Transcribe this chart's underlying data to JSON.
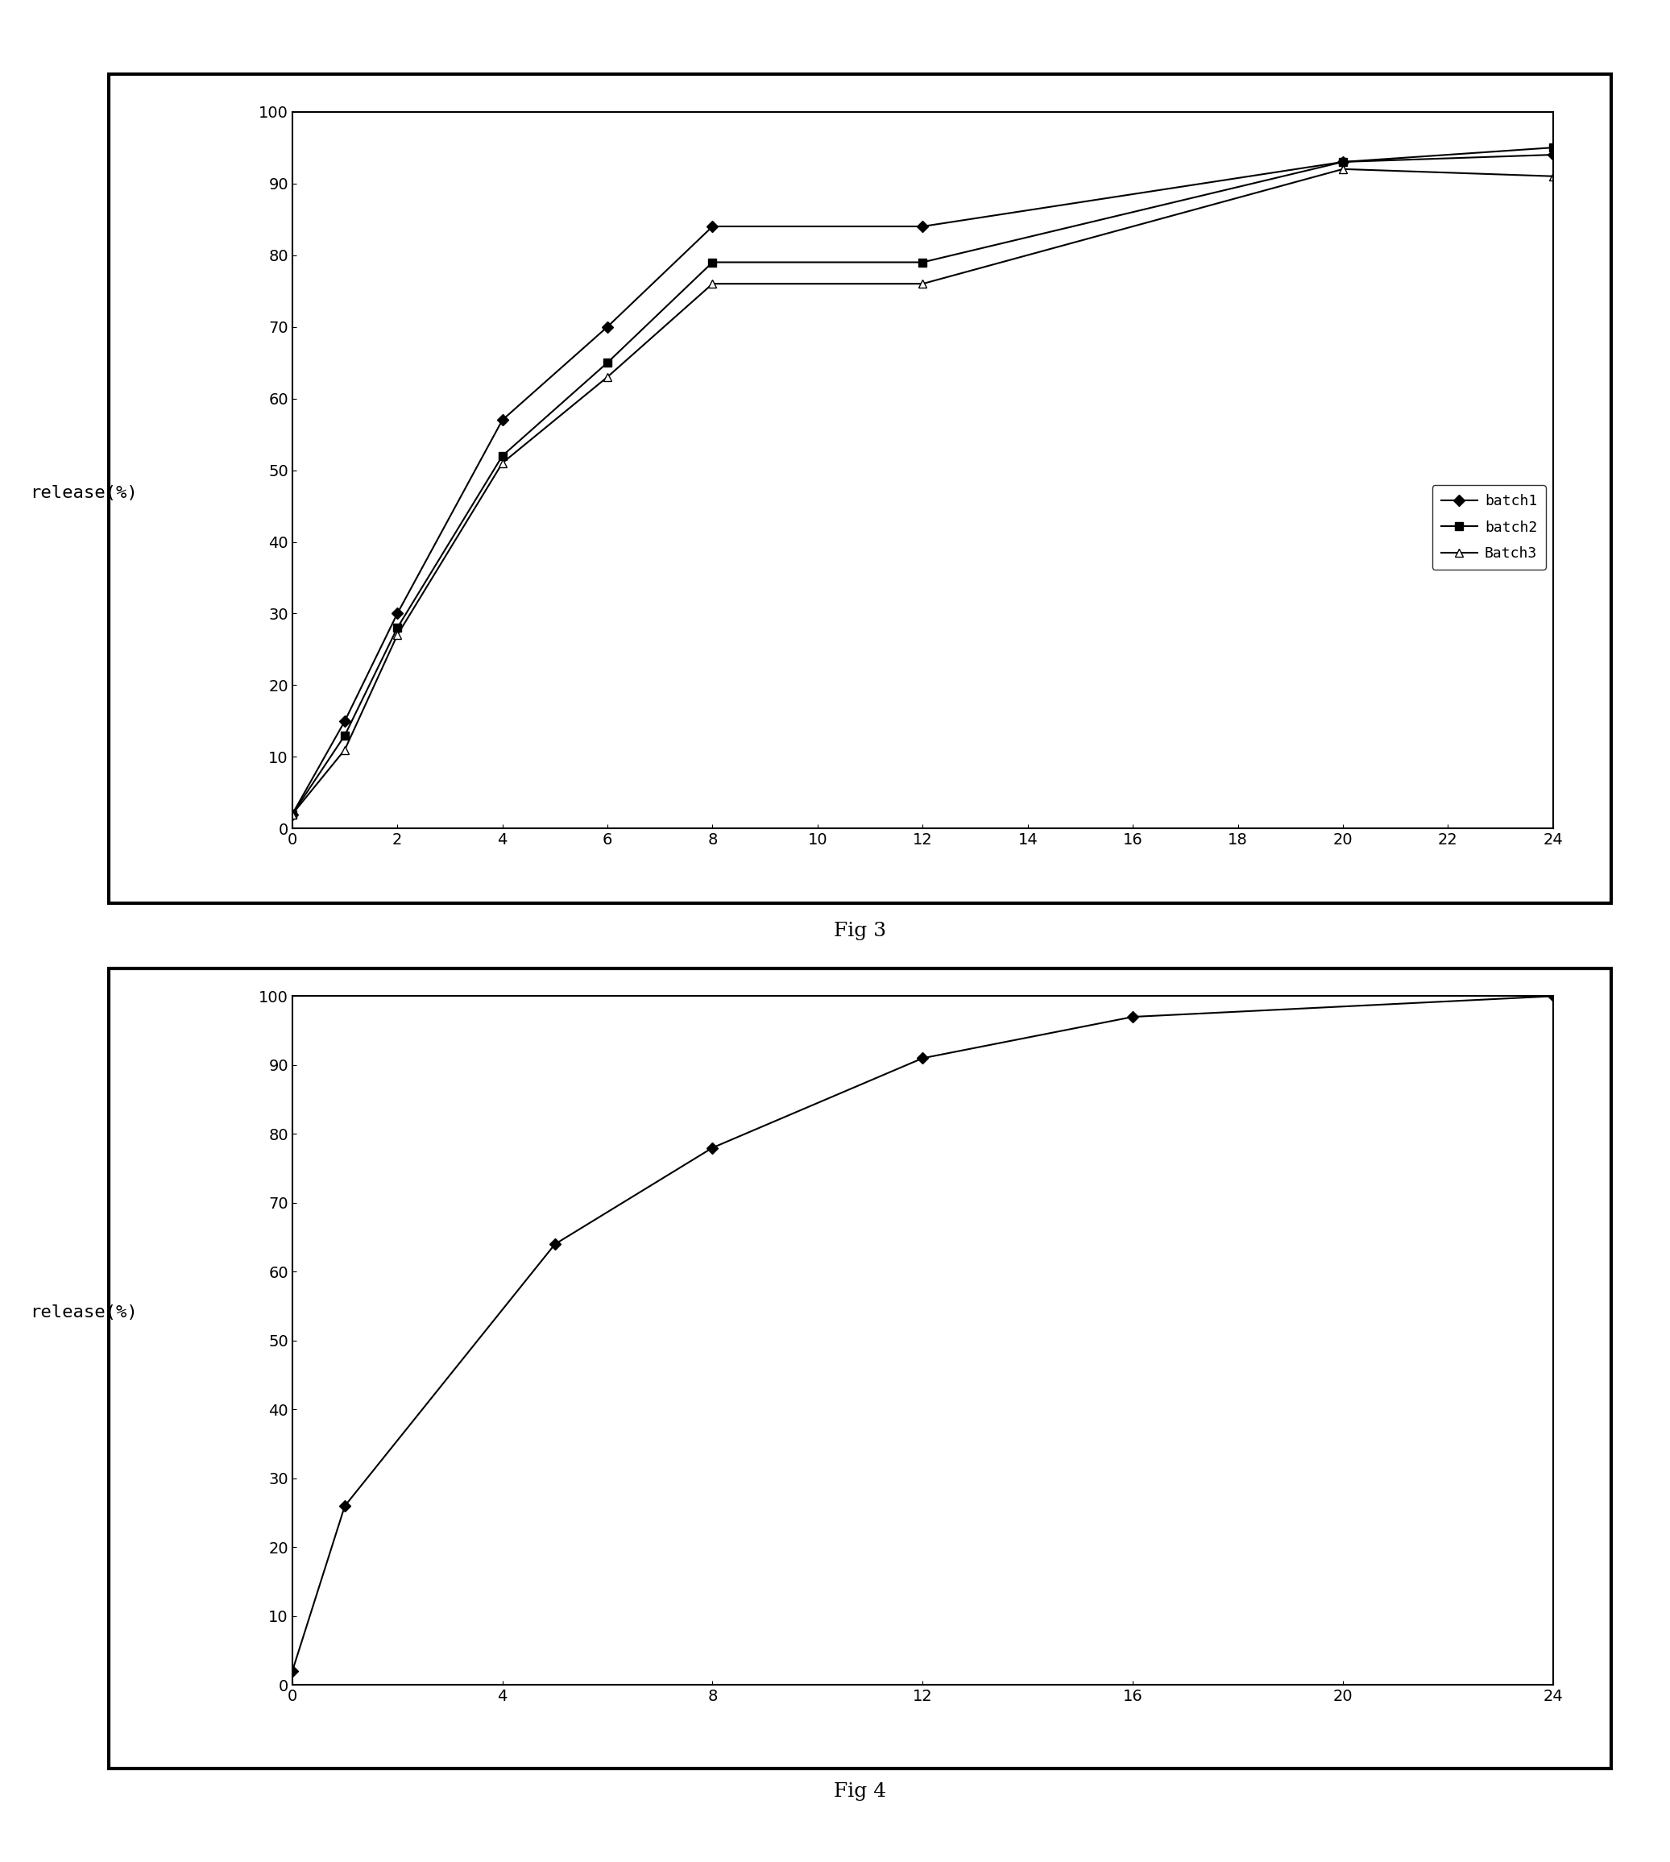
{
  "fig3": {
    "batch1": {
      "x": [
        0,
        1,
        2,
        4,
        6,
        8,
        12,
        20,
        24
      ],
      "y": [
        2,
        15,
        30,
        57,
        70,
        84,
        84,
        93,
        94
      ],
      "marker": "D",
      "markersize": 7,
      "label": "batch1",
      "color": "black",
      "markerfacecolor": "black"
    },
    "batch2": {
      "x": [
        0,
        1,
        2,
        4,
        6,
        8,
        12,
        20,
        24
      ],
      "y": [
        2,
        13,
        28,
        52,
        65,
        79,
        79,
        93,
        95
      ],
      "marker": "s",
      "markersize": 7,
      "label": "batch2",
      "color": "black",
      "markerfacecolor": "black"
    },
    "batch3": {
      "x": [
        0,
        1,
        2,
        4,
        6,
        8,
        12,
        20,
        24
      ],
      "y": [
        2,
        11,
        27,
        51,
        63,
        76,
        76,
        92,
        91
      ],
      "marker": "^",
      "markersize": 7,
      "label": "Batch3",
      "color": "black",
      "markerfacecolor": "white"
    },
    "xlim": [
      0,
      24
    ],
    "ylim": [
      0,
      100
    ],
    "xticks": [
      0,
      2,
      4,
      6,
      8,
      10,
      12,
      14,
      16,
      18,
      20,
      22,
      24
    ],
    "yticks": [
      0,
      10,
      20,
      30,
      40,
      50,
      60,
      70,
      80,
      90,
      100
    ],
    "caption": "Fig 3",
    "ylabel": "release(%)"
  },
  "fig4": {
    "series": {
      "x": [
        0,
        1,
        5,
        8,
        12,
        16,
        24
      ],
      "y": [
        2,
        26,
        64,
        78,
        91,
        97,
        100
      ],
      "marker": "D",
      "markersize": 7,
      "color": "black",
      "markerfacecolor": "black"
    },
    "xlim": [
      0,
      24
    ],
    "ylim": [
      0,
      100
    ],
    "xticks": [
      0,
      4,
      8,
      12,
      16,
      20,
      24
    ],
    "yticks": [
      0,
      10,
      20,
      30,
      40,
      50,
      60,
      70,
      80,
      90,
      100
    ],
    "caption": "Fig 4",
    "ylabel": "release(%)"
  },
  "background_color": "#ffffff",
  "tick_fontsize": 14,
  "legend_fontsize": 13,
  "ylabel_fontsize": 16,
  "caption_fontsize": 18,
  "outer_border_lw": 3.5,
  "inner_border_lw": 1.5
}
